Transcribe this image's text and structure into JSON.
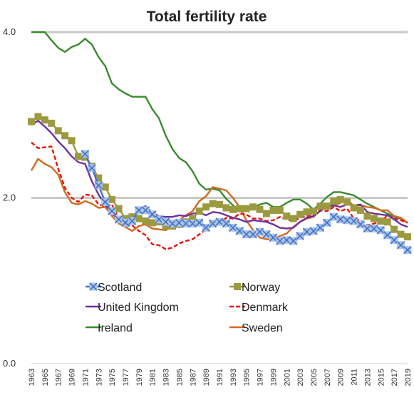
{
  "chart_data": {
    "type": "line",
    "title": "Total fertility rate",
    "xlabel": "",
    "ylabel": "",
    "ylim": [
      0.0,
      4.0
    ],
    "yticks": [
      "0.0",
      "2.0",
      "4.0"
    ],
    "xlim": [
      1963,
      2019
    ],
    "xtick_labels": [
      "1963",
      "1965",
      "1967",
      "1969",
      "1971",
      "1973",
      "1975",
      "1977",
      "1979",
      "1981",
      "1983",
      "1985",
      "1987",
      "1989",
      "1991",
      "1993",
      "1995",
      "1997",
      "1999",
      "2001",
      "2003",
      "2005",
      "2007",
      "2009",
      "2011",
      "2013",
      "2015",
      "2017",
      "2019"
    ],
    "gridlines": [
      2.0,
      4.0
    ],
    "legend_position": "bottom-center",
    "series": [
      {
        "name": "Scotland",
        "color": "#4472C4",
        "marker": "x-box",
        "x": [
          1971,
          1972,
          1973,
          1974,
          1975,
          1976,
          1977,
          1978,
          1979,
          1980,
          1981,
          1982,
          1983,
          1984,
          1985,
          1986,
          1987,
          1988,
          1989,
          1990,
          1991,
          1992,
          1993,
          1994,
          1995,
          1996,
          1997,
          1998,
          1999,
          2000,
          2001,
          2002,
          2003,
          2004,
          2005,
          2006,
          2007,
          2008,
          2009,
          2010,
          2011,
          2012,
          2013,
          2014,
          2015,
          2016,
          2017,
          2018,
          2019
        ],
        "y": [
          2.53,
          2.36,
          2.15,
          1.95,
          1.84,
          1.74,
          1.7,
          1.72,
          1.85,
          1.85,
          1.8,
          1.74,
          1.71,
          1.69,
          1.7,
          1.69,
          1.69,
          1.7,
          1.64,
          1.69,
          1.71,
          1.69,
          1.64,
          1.6,
          1.56,
          1.56,
          1.59,
          1.56,
          1.52,
          1.48,
          1.49,
          1.48,
          1.54,
          1.59,
          1.6,
          1.64,
          1.7,
          1.77,
          1.74,
          1.73,
          1.72,
          1.68,
          1.63,
          1.63,
          1.61,
          1.55,
          1.49,
          1.43,
          1.37
        ]
      },
      {
        "name": "Norway",
        "color": "#9C9A40",
        "marker": "square",
        "x": [
          1963,
          1964,
          1965,
          1966,
          1967,
          1968,
          1969,
          1970,
          1971,
          1972,
          1973,
          1974,
          1975,
          1976,
          1977,
          1978,
          1979,
          1980,
          1981,
          1982,
          1983,
          1984,
          1985,
          1986,
          1987,
          1988,
          1989,
          1990,
          1991,
          1992,
          1993,
          1994,
          1995,
          1996,
          1997,
          1998,
          1999,
          2000,
          2001,
          2002,
          2003,
          2004,
          2005,
          2006,
          2007,
          2008,
          2009,
          2010,
          2011,
          2012,
          2013,
          2014,
          2015,
          2016,
          2017,
          2018,
          2019
        ],
        "y": [
          2.92,
          2.98,
          2.94,
          2.9,
          2.81,
          2.75,
          2.69,
          2.5,
          2.49,
          2.38,
          2.24,
          2.13,
          1.98,
          1.87,
          1.75,
          1.77,
          1.75,
          1.72,
          1.7,
          1.71,
          1.66,
          1.66,
          1.68,
          1.71,
          1.75,
          1.84,
          1.89,
          1.93,
          1.92,
          1.88,
          1.86,
          1.87,
          1.87,
          1.89,
          1.86,
          1.81,
          1.85,
          1.85,
          1.78,
          1.75,
          1.8,
          1.83,
          1.84,
          1.9,
          1.9,
          1.96,
          1.98,
          1.95,
          1.88,
          1.85,
          1.78,
          1.75,
          1.72,
          1.71,
          1.62,
          1.56,
          1.53
        ]
      },
      {
        "name": "United Kingdom",
        "color": "#7030A0",
        "marker": "none",
        "x": [
          1963,
          1964,
          1965,
          1966,
          1967,
          1968,
          1969,
          1970,
          1971,
          1972,
          1973,
          1974,
          1975,
          1976,
          1977,
          1978,
          1979,
          1980,
          1981,
          1982,
          1983,
          1984,
          1985,
          1986,
          1987,
          1988,
          1989,
          1990,
          1991,
          1992,
          1993,
          1994,
          1995,
          1996,
          1997,
          1998,
          1999,
          2000,
          2001,
          2002,
          2003,
          2004,
          2005,
          2006,
          2007,
          2008,
          2009,
          2010,
          2011,
          2012,
          2013,
          2014,
          2015,
          2016,
          2017,
          2018,
          2019
        ],
        "y": [
          2.88,
          2.93,
          2.86,
          2.78,
          2.68,
          2.6,
          2.5,
          2.43,
          2.41,
          2.2,
          2.04,
          1.92,
          1.81,
          1.74,
          1.69,
          1.75,
          1.86,
          1.9,
          1.82,
          1.78,
          1.77,
          1.77,
          1.79,
          1.78,
          1.81,
          1.82,
          1.79,
          1.83,
          1.82,
          1.79,
          1.76,
          1.74,
          1.71,
          1.73,
          1.72,
          1.71,
          1.68,
          1.64,
          1.63,
          1.64,
          1.71,
          1.76,
          1.78,
          1.84,
          1.9,
          1.91,
          1.89,
          1.92,
          1.91,
          1.92,
          1.83,
          1.81,
          1.8,
          1.79,
          1.74,
          1.68,
          1.65
        ]
      },
      {
        "name": "Denmark",
        "color": "#E8140C",
        "marker": "none",
        "dash": "6,3",
        "x": [
          1963,
          1964,
          1965,
          1966,
          1967,
          1968,
          1969,
          1970,
          1971,
          1972,
          1973,
          1974,
          1975,
          1976,
          1977,
          1978,
          1979,
          1980,
          1981,
          1982,
          1983,
          1984,
          1985,
          1986,
          1987,
          1988,
          1989,
          1990,
          1991,
          1992,
          1993,
          1994,
          1995,
          1996,
          1997,
          1998,
          1999,
          2000,
          2001,
          2002,
          2003,
          2004,
          2005,
          2006,
          2007,
          2008,
          2009,
          2010,
          2011,
          2012,
          2013,
          2014,
          2015,
          2016,
          2017,
          2018,
          2019
        ],
        "y": [
          2.67,
          2.6,
          2.61,
          2.62,
          2.35,
          2.12,
          2.0,
          1.95,
          2.04,
          2.03,
          1.92,
          1.9,
          1.92,
          1.75,
          1.66,
          1.67,
          1.6,
          1.55,
          1.44,
          1.43,
          1.38,
          1.4,
          1.45,
          1.48,
          1.5,
          1.56,
          1.62,
          1.67,
          1.68,
          1.76,
          1.75,
          1.81,
          1.8,
          1.75,
          1.75,
          1.72,
          1.73,
          1.77,
          1.74,
          1.72,
          1.76,
          1.78,
          1.8,
          1.85,
          1.84,
          1.89,
          1.84,
          1.87,
          1.75,
          1.73,
          1.67,
          1.69,
          1.71,
          1.79,
          1.75,
          1.73,
          1.7
        ]
      },
      {
        "name": "Ireland",
        "color": "#3A8A2E",
        "marker": "none",
        "x": [
          1963,
          1964,
          1965,
          1966,
          1967,
          1968,
          1969,
          1970,
          1971,
          1972,
          1973,
          1974,
          1975,
          1976,
          1977,
          1978,
          1979,
          1980,
          1981,
          1982,
          1983,
          1984,
          1985,
          1986,
          1987,
          1988,
          1989,
          1990,
          1991,
          1992,
          1993,
          1994,
          1995,
          1996,
          1997,
          1998,
          1999,
          2000,
          2001,
          2002,
          2003,
          2004,
          2005,
          2006,
          2007,
          2008,
          2009,
          2010,
          2011,
          2012,
          2013,
          2014,
          2015,
          2016,
          2017,
          2018,
          2019
        ],
        "y": [
          4.1,
          4.05,
          4.01,
          3.9,
          3.81,
          3.76,
          3.82,
          3.85,
          3.92,
          3.85,
          3.7,
          3.59,
          3.38,
          3.31,
          3.26,
          3.22,
          3.22,
          3.22,
          3.07,
          2.96,
          2.75,
          2.59,
          2.48,
          2.43,
          2.32,
          2.17,
          2.1,
          2.11,
          2.09,
          1.99,
          1.91,
          1.85,
          1.84,
          1.88,
          1.92,
          1.94,
          1.89,
          1.89,
          1.94,
          1.98,
          1.98,
          1.93,
          1.86,
          1.93,
          2.01,
          2.07,
          2.07,
          2.05,
          2.03,
          1.98,
          1.93,
          1.89,
          1.85,
          1.81,
          1.77,
          1.75,
          1.7
        ]
      },
      {
        "name": "Sweden",
        "color": "#D2691E",
        "marker": "none",
        "x": [
          1963,
          1964,
          1965,
          1966,
          1967,
          1968,
          1969,
          1970,
          1971,
          1972,
          1973,
          1974,
          1975,
          1976,
          1977,
          1978,
          1979,
          1980,
          1981,
          1982,
          1983,
          1984,
          1985,
          1986,
          1987,
          1988,
          1989,
          1990,
          1991,
          1992,
          1993,
          1994,
          1995,
          1996,
          1997,
          1998,
          1999,
          2000,
          2001,
          2002,
          2003,
          2004,
          2005,
          2006,
          2007,
          2008,
          2009,
          2010,
          2011,
          2012,
          2013,
          2014,
          2015,
          2016,
          2017,
          2018,
          2019
        ],
        "y": [
          2.33,
          2.47,
          2.41,
          2.37,
          2.28,
          2.07,
          1.94,
          1.92,
          1.96,
          1.93,
          1.88,
          1.89,
          1.78,
          1.69,
          1.65,
          1.6,
          1.66,
          1.68,
          1.63,
          1.62,
          1.61,
          1.65,
          1.73,
          1.79,
          1.84,
          1.96,
          2.02,
          2.13,
          2.11,
          2.09,
          2.0,
          1.89,
          1.73,
          1.61,
          1.52,
          1.5,
          1.5,
          1.54,
          1.57,
          1.65,
          1.71,
          1.75,
          1.77,
          1.85,
          1.88,
          1.91,
          1.94,
          1.98,
          1.9,
          1.91,
          1.89,
          1.88,
          1.85,
          1.85,
          1.78,
          1.76,
          1.7
        ]
      }
    ]
  }
}
